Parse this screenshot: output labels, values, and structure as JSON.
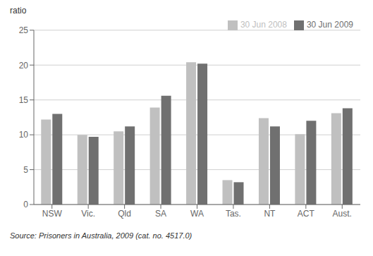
{
  "chart_data": {
    "type": "bar",
    "y_label": "ratio",
    "categories": [
      "NSW",
      "Vic.",
      "Qld",
      "SA",
      "WA",
      "Tas.",
      "NT",
      "ACT",
      "Aust."
    ],
    "series": [
      {
        "name": "30 Jun 2008",
        "color": "#c0c0c0",
        "values": [
          12.2,
          10.0,
          10.5,
          13.9,
          20.4,
          3.5,
          12.4,
          10.1,
          13.1
        ]
      },
      {
        "name": "30 Jun 2009",
        "color": "#707070",
        "values": [
          13.0,
          9.7,
          11.2,
          15.6,
          20.2,
          3.2,
          11.2,
          12.0,
          13.8
        ]
      }
    ],
    "ylim": [
      0,
      25
    ],
    "yticks": [
      0,
      5,
      10,
      15,
      20,
      25
    ],
    "grid": true,
    "legend": "upper right",
    "annotations": [
      "Source: Prisoners in Australia, 2009 (cat. no. 4517.0)"
    ]
  }
}
